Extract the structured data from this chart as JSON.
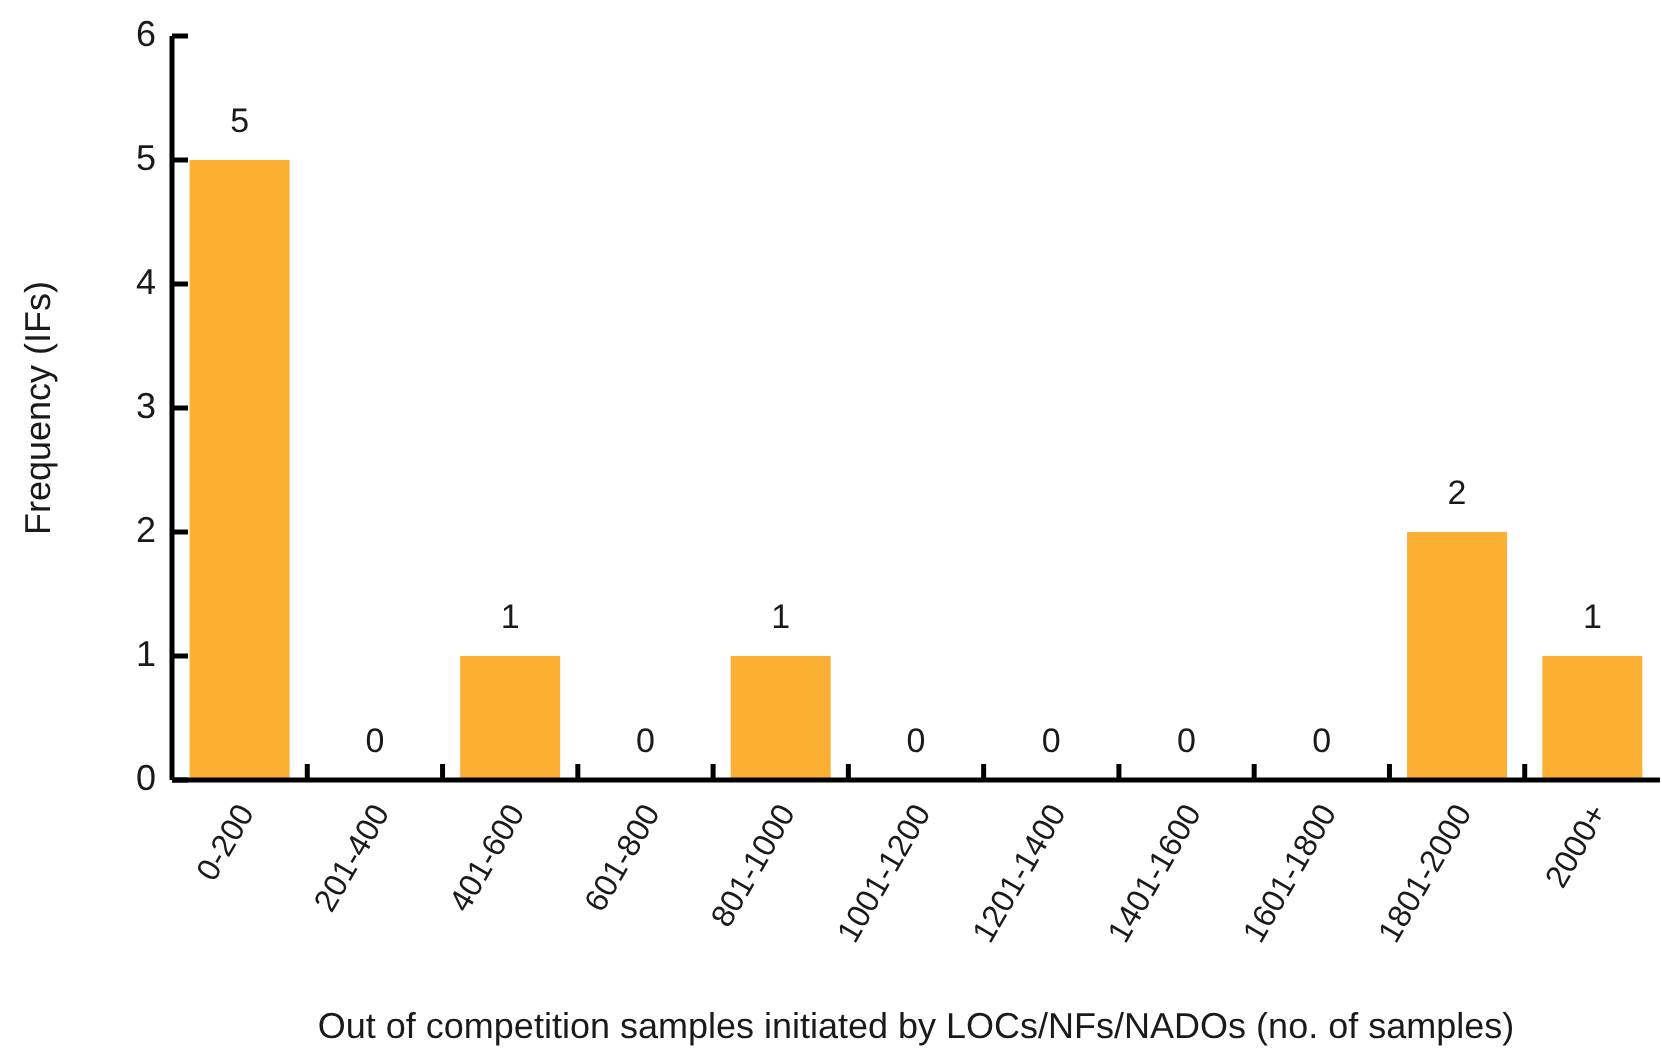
{
  "chart_data": {
    "type": "bar",
    "xlabel": "Out of competition samples initiated by LOCs/NFs/NADOs (no. of samples)",
    "ylabel": "Frequency (IFs)",
    "categories": [
      "0-200",
      "201-400",
      "401-600",
      "601-800",
      "801-1000",
      "1001-1200",
      "1201-1400",
      "1401-1600",
      "1601-1800",
      "1801-2000",
      "2000+"
    ],
    "values": [
      5,
      0,
      1,
      0,
      1,
      0,
      0,
      0,
      0,
      2,
      1
    ],
    "color": "#fbb034",
    "ylim": [
      0,
      6
    ],
    "yticks": [
      0,
      1,
      2,
      3,
      4,
      5,
      6
    ],
    "data_labels": true
  }
}
